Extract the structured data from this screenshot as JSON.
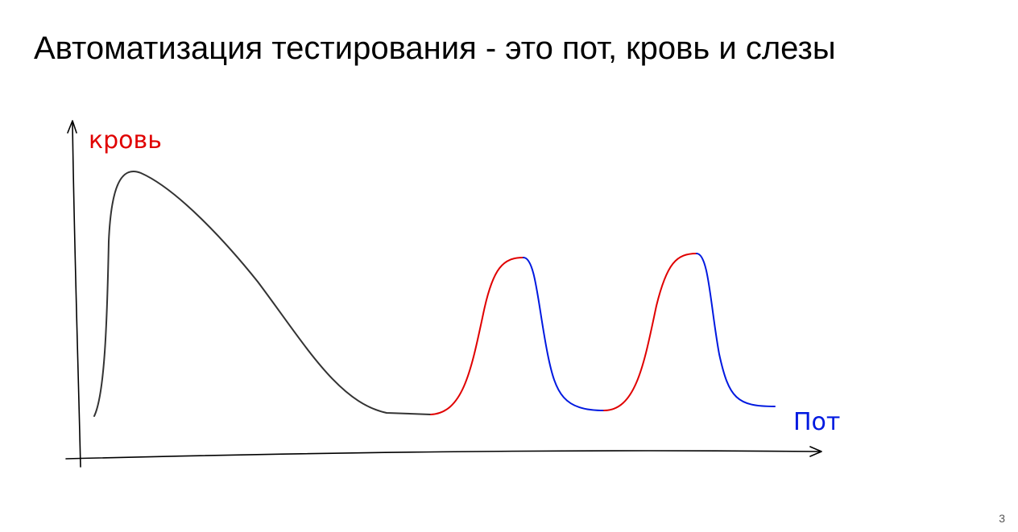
{
  "slide": {
    "title": "Автоматизация тестирования - это пот, кровь и слезы",
    "y_label": "кровь",
    "x_label": "Пот",
    "page_number": "3"
  }
}
